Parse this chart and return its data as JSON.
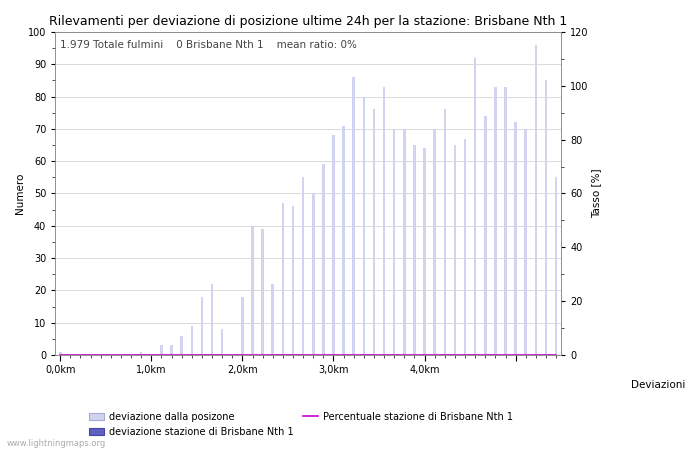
{
  "title": "Rilevamenti per deviazione di posizione ultime 24h per la stazione: Brisbane Nth 1",
  "subtitle": "1.979 Totale fulmini    0 Brisbane Nth 1    mean ratio: 0%",
  "xlabel": "Deviazioni",
  "ylabel_left": "Numero",
  "ylabel_right": "Tasso [%]",
  "ylim_left": [
    0,
    100
  ],
  "ylim_right": [
    0,
    120
  ],
  "xtick_positions": [
    0,
    9,
    18,
    27,
    36,
    45
  ],
  "xtick_labels": [
    "0,0km",
    "1,0km",
    "2,0km",
    "3,0km",
    "4,0km",
    ""
  ],
  "bar_values": [
    1,
    0,
    0,
    0,
    0,
    0,
    0,
    0,
    1,
    0,
    3,
    3,
    6,
    9,
    18,
    22,
    8,
    0,
    18,
    40,
    39,
    22,
    47,
    46,
    55,
    50,
    59,
    68,
    71,
    86,
    80,
    76,
    83,
    70,
    70,
    65,
    64,
    70,
    76,
    65,
    67,
    92,
    74,
    83,
    83,
    72,
    70,
    96,
    85,
    55
  ],
  "bar_color_light": "#d0d4f0",
  "bar_color_dark": "#6060c0",
  "percentage_line_value": 0,
  "percentage_color": "#cc00cc",
  "legend_labels": [
    "deviazione dalla posizone",
    "deviazione stazione di Brisbane Nth 1",
    "Percentuale stazione di Brisbane Nth 1"
  ],
  "title_fontsize": 9,
  "subtitle_fontsize": 7.5,
  "axis_fontsize": 7.5,
  "tick_fontsize": 7,
  "background_color": "#ffffff",
  "watermark": "www.lightningmaps.org",
  "yticks_left": [
    0,
    10,
    20,
    30,
    40,
    50,
    60,
    70,
    80,
    90,
    100
  ],
  "yticks_right": [
    0,
    20,
    40,
    60,
    80,
    100,
    120
  ],
  "bar_width": 0.25
}
